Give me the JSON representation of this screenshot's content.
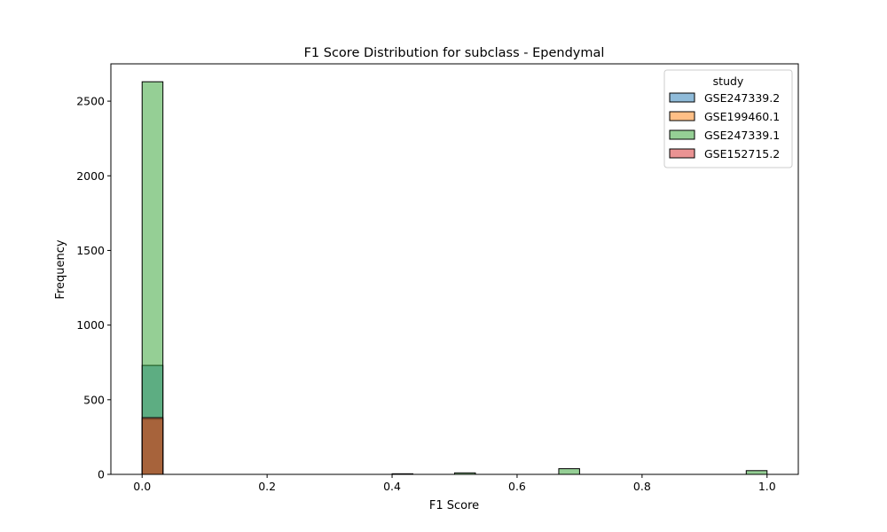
{
  "chart_data": {
    "type": "histogram",
    "title": "F1 Score Distribution for subclass - Ependymal",
    "xlabel": "F1 Score",
    "ylabel": "Frequency",
    "xlim": [
      -0.05,
      1.05
    ],
    "ylim": [
      0,
      2750
    ],
    "xticks": [
      "0.0",
      "0.2",
      "0.4",
      "0.6",
      "0.8",
      "1.0"
    ],
    "xtick_values": [
      0.0,
      0.2,
      0.4,
      0.6,
      0.8,
      1.0
    ],
    "yticks": [
      "0",
      "500",
      "1000",
      "1500",
      "2000",
      "2500"
    ],
    "ytick_values": [
      0,
      500,
      1000,
      1500,
      2000,
      2500
    ],
    "bin_width": 0.0333,
    "legend": {
      "title": "study",
      "placement": "top-right"
    },
    "series": [
      {
        "name": "GSE247339.2",
        "color": "#1f77b4",
        "bins": [
          {
            "x0": 0.0,
            "x1": 0.0333,
            "value": 730
          }
        ]
      },
      {
        "name": "GSE199460.1",
        "color": "#ff7f0e",
        "bins": [
          {
            "x0": 0.0,
            "x1": 0.0333,
            "value": 370
          }
        ]
      },
      {
        "name": "GSE247339.1",
        "color": "#2ca02c",
        "bins": [
          {
            "x0": 0.0,
            "x1": 0.0333,
            "value": 2630
          },
          {
            "x0": 0.4,
            "x1": 0.4333,
            "value": 4
          },
          {
            "x0": 0.5,
            "x1": 0.5333,
            "value": 10
          },
          {
            "x0": 0.6667,
            "x1": 0.7,
            "value": 38
          },
          {
            "x0": 0.9667,
            "x1": 1.0,
            "value": 25
          }
        ]
      },
      {
        "name": "GSE152715.2",
        "color": "#d62728",
        "bins": [
          {
            "x0": 0.0,
            "x1": 0.0333,
            "value": 380
          }
        ]
      }
    ]
  }
}
